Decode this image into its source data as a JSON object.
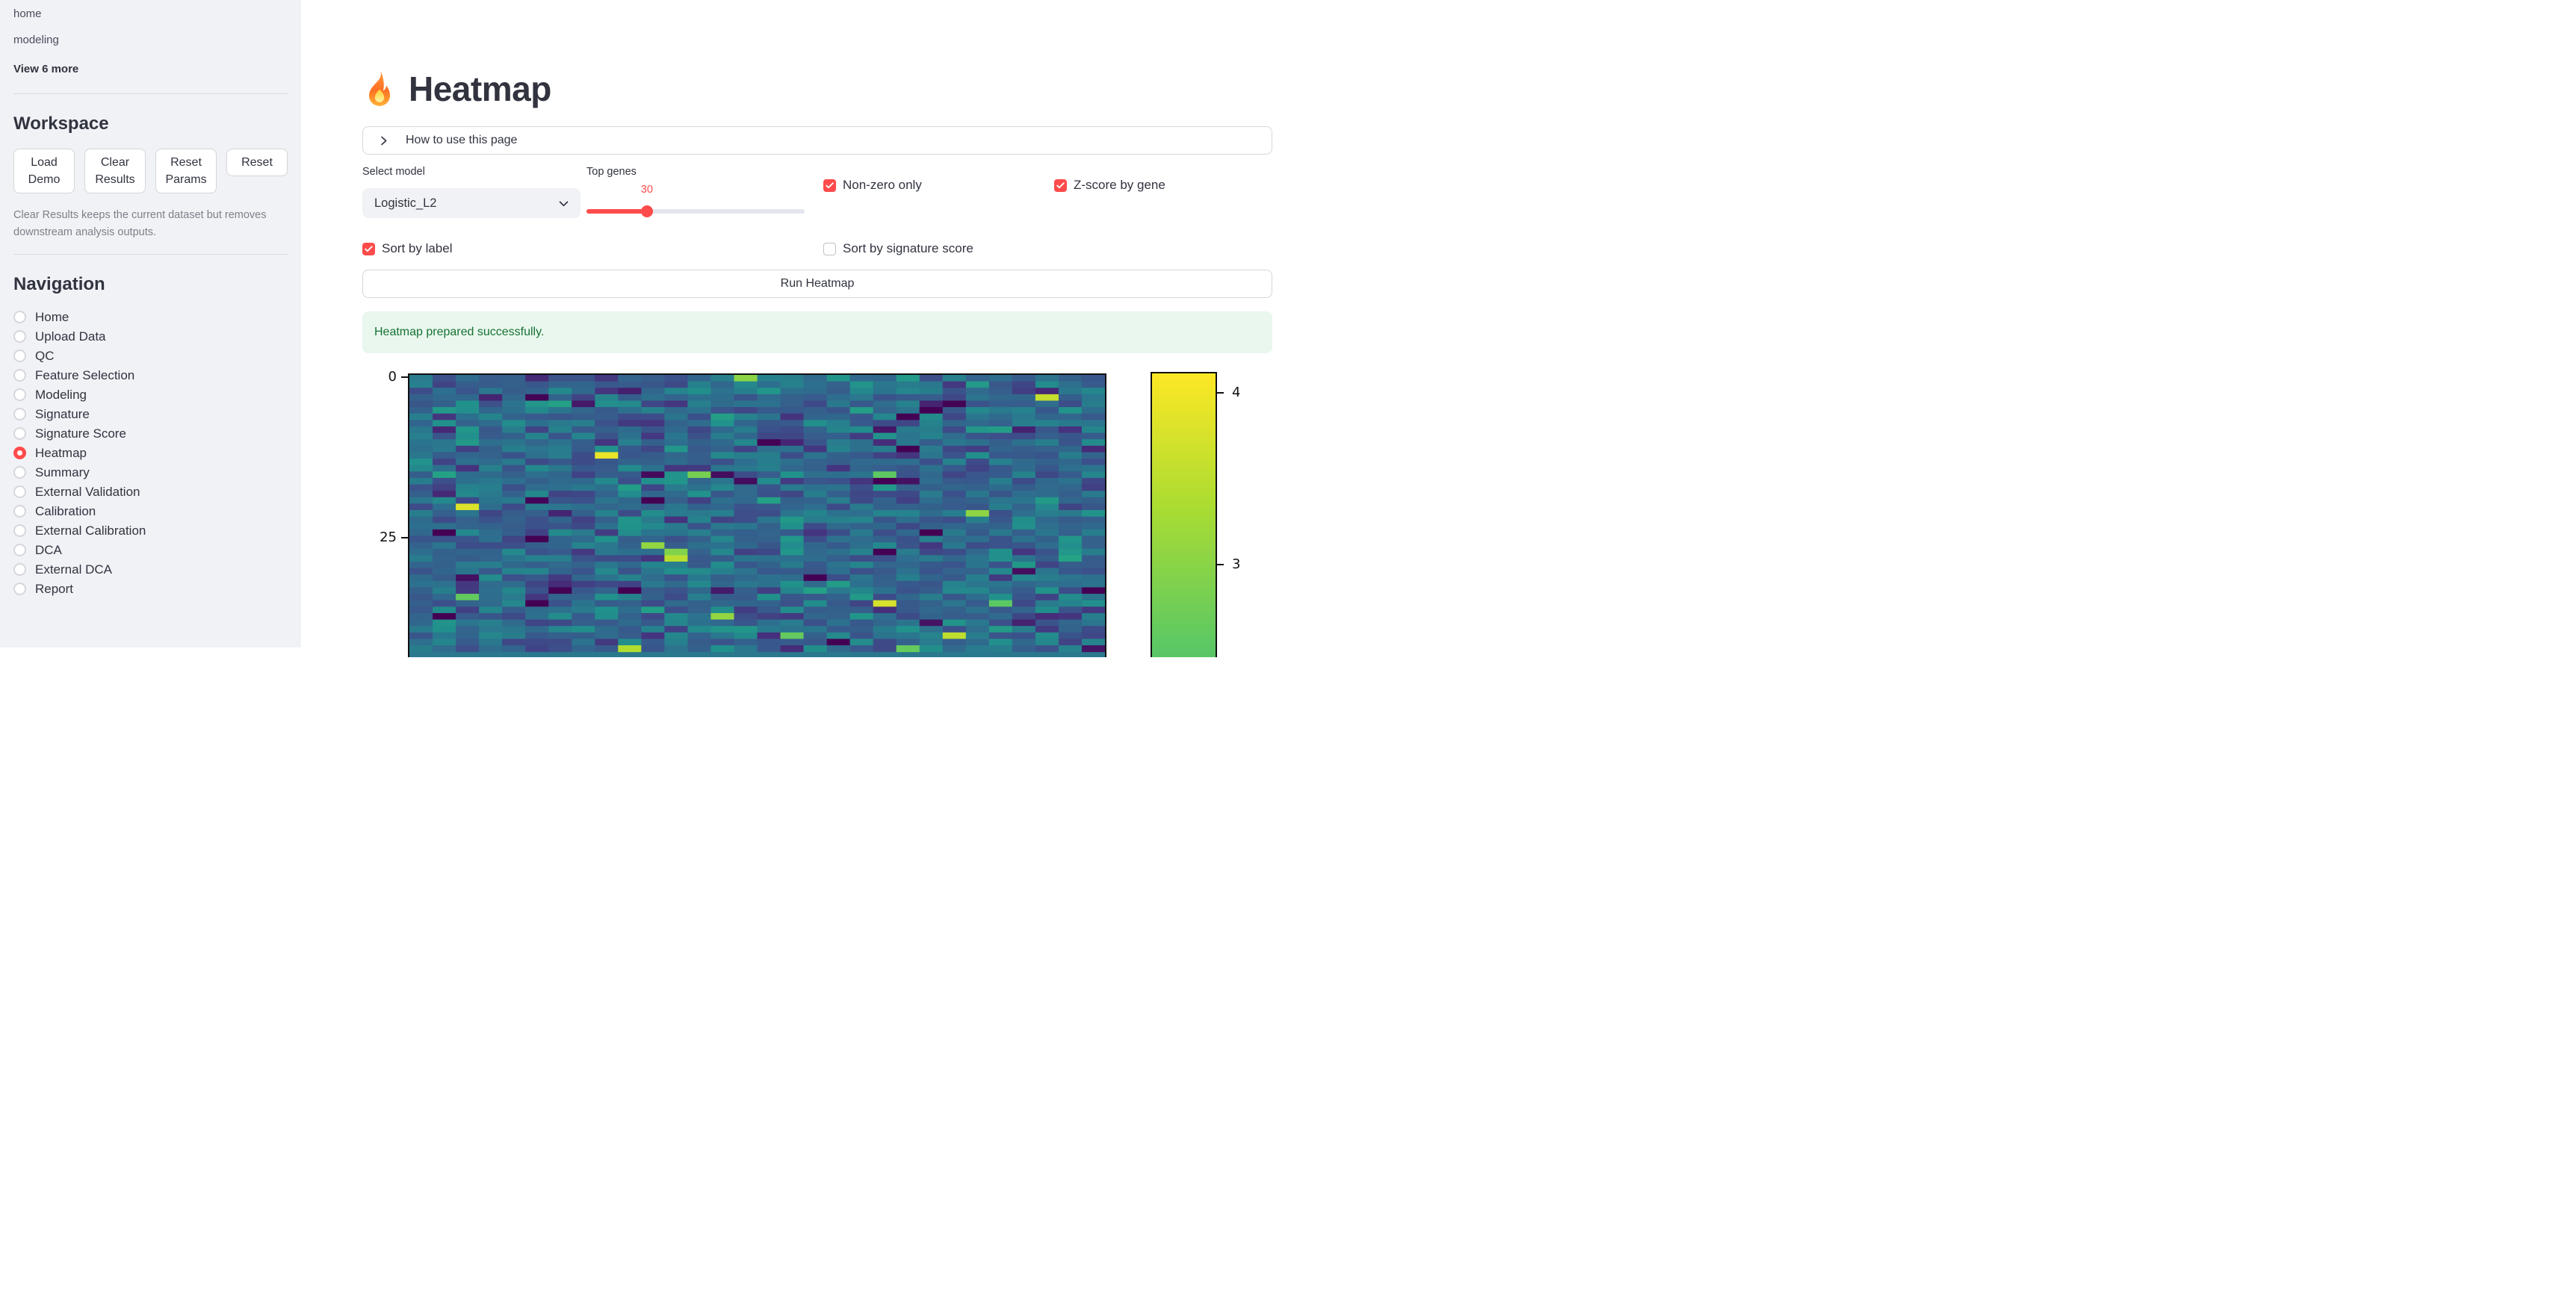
{
  "sidebar": {
    "links": [
      "home",
      "modeling"
    ],
    "view_more_label": "View 6 more",
    "workspace": {
      "title": "Workspace",
      "buttons": [
        "Load Demo",
        "Clear Results",
        "Reset Params",
        "Reset"
      ],
      "caption": "Clear Results keeps the current dataset but removes downstream analysis outputs."
    },
    "navigation": {
      "title": "Navigation",
      "items": [
        "Home",
        "Upload Data",
        "QC",
        "Feature Selection",
        "Modeling",
        "Signature",
        "Signature Score",
        "Heatmap",
        "Summary",
        "External Validation",
        "Calibration",
        "External Calibration",
        "DCA",
        "External DCA",
        "Report"
      ],
      "selected": "Heatmap"
    }
  },
  "main": {
    "title": "Heatmap",
    "title_icon": "fire-emoji",
    "expander": {
      "label": "How to use this page"
    },
    "controls": {
      "select_model": {
        "label": "Select model",
        "value": "Logistic_L2"
      },
      "top_genes": {
        "label": "Top genes",
        "value": "30",
        "fraction": 0.277
      },
      "checkboxes": [
        {
          "label": "Non-zero only",
          "checked": true
        },
        {
          "label": "Z-score by gene",
          "checked": true
        },
        {
          "label": "Sort by label",
          "checked": true
        },
        {
          "label": "Sort by signature score",
          "checked": false
        }
      ]
    },
    "run_button_label": "Run Heatmap",
    "success_message": "Heatmap prepared successfully."
  },
  "chart_data": {
    "type": "heatmap",
    "description": "Gene-expression heatmap (samples as rows, top-30 genes as columns), viridis colormap, figure cropped at bottom edge of viewport",
    "n_cols": 30,
    "n_rows_visible": 43,
    "y_tick_labels": [
      "0",
      "25"
    ],
    "colorbar_tick_labels": [
      "4",
      "3"
    ],
    "colorbar_top_value": 4.11,
    "colormap": "viridis",
    "colormap_stops": [
      "#440154",
      "#46327e",
      "#3b528b",
      "#2c728e",
      "#21918c",
      "#27ad81",
      "#5ec962",
      "#aadc32",
      "#fde725"
    ],
    "value_range": [
      -2.1,
      4.11
    ],
    "random_seed": 42,
    "legend_position": "right-colorbar",
    "grid": false
  },
  "colors": {
    "accent": "#ff4b4b",
    "sidebar_bg": "#f0f2f6",
    "text": "#31333f",
    "success_bg": "#e9f7ee",
    "success_text": "#177233"
  }
}
